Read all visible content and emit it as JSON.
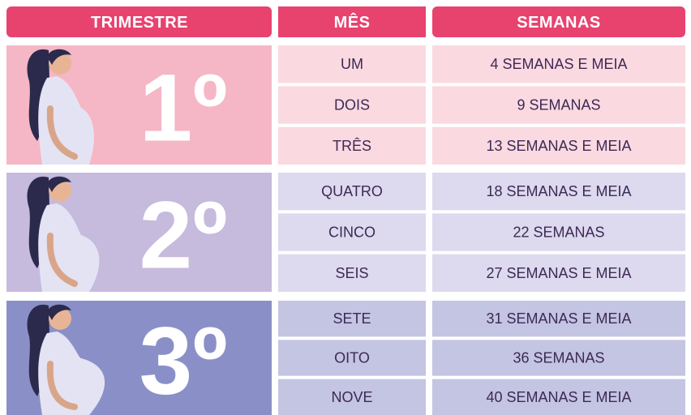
{
  "header": [
    "TRIMESTRE",
    "MÊS",
    "SEMANAS"
  ],
  "trimesters": [
    {
      "label": "1º",
      "months": [
        {
          "month": "UM",
          "weeks": "4 SEMANAS E MEIA"
        },
        {
          "month": "DOIS",
          "weeks": "9 SEMANAS"
        },
        {
          "month": "TRÊS",
          "weeks": "13 SEMANAS E MEIA"
        }
      ]
    },
    {
      "label": "2º",
      "months": [
        {
          "month": "QUATRO",
          "weeks": "18 SEMANAS E MEIA"
        },
        {
          "month": "CINCO",
          "weeks": "22 SEMANAS"
        },
        {
          "month": "SEIS",
          "weeks": "27 SEMANAS E MEIA"
        }
      ]
    },
    {
      "label": "3º",
      "months": [
        {
          "month": "SETE",
          "weeks": "31 SEMANAS E MEIA"
        },
        {
          "month": "OITO",
          "weeks": "36 SEMANAS"
        },
        {
          "month": "NOVE",
          "weeks": "40 SEMANAS E MEIA"
        }
      ]
    }
  ]
}
